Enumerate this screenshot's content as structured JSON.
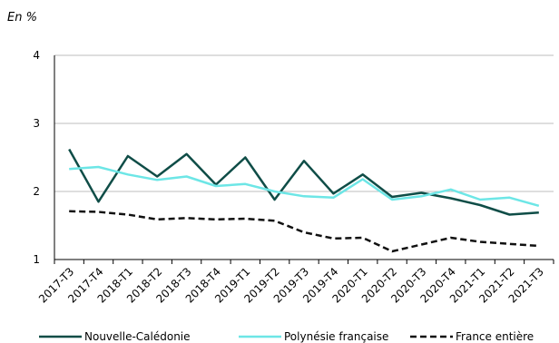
{
  "chart_data": {
    "type": "line",
    "unit_label": "En %",
    "title": "",
    "xlabel": "",
    "ylabel": "",
    "categories": [
      "2017-T3",
      "2017-T4",
      "2018-T1",
      "2018-T2",
      "2018-T3",
      "2018-T4",
      "2019-T1",
      "2019-T2",
      "2019-T3",
      "2019-T4",
      "2020-T1",
      "2020-T2",
      "2020-T3",
      "2020-T4",
      "2021-T1",
      "2021-T2",
      "2021-T3"
    ],
    "y_ticks": [
      "1",
      "2",
      "3",
      "4"
    ],
    "ylim": [
      1,
      4
    ],
    "grid": "horizontal",
    "legend_position": "bottom",
    "series": [
      {
        "name": "Nouvelle-Calédonie",
        "color": "#0f4d47",
        "style": "solid",
        "values": [
          2.62,
          1.85,
          2.52,
          2.22,
          2.55,
          2.1,
          2.5,
          1.88,
          2.45,
          1.97,
          2.25,
          1.92,
          1.98,
          1.9,
          1.8,
          1.66,
          1.69
        ]
      },
      {
        "name": "Polynésie française",
        "color": "#6de6e6",
        "style": "solid",
        "values": [
          2.33,
          2.36,
          2.25,
          2.17,
          2.22,
          2.08,
          2.11,
          2.0,
          1.93,
          1.91,
          2.18,
          1.88,
          1.93,
          2.03,
          1.88,
          1.91,
          1.79
        ]
      },
      {
        "name": "France entière",
        "color": "#111111",
        "style": "dashed",
        "values": [
          1.71,
          1.7,
          1.66,
          1.59,
          1.61,
          1.59,
          1.6,
          1.57,
          1.4,
          1.31,
          1.32,
          1.12,
          1.22,
          1.32,
          1.26,
          1.23,
          1.2
        ]
      }
    ]
  }
}
